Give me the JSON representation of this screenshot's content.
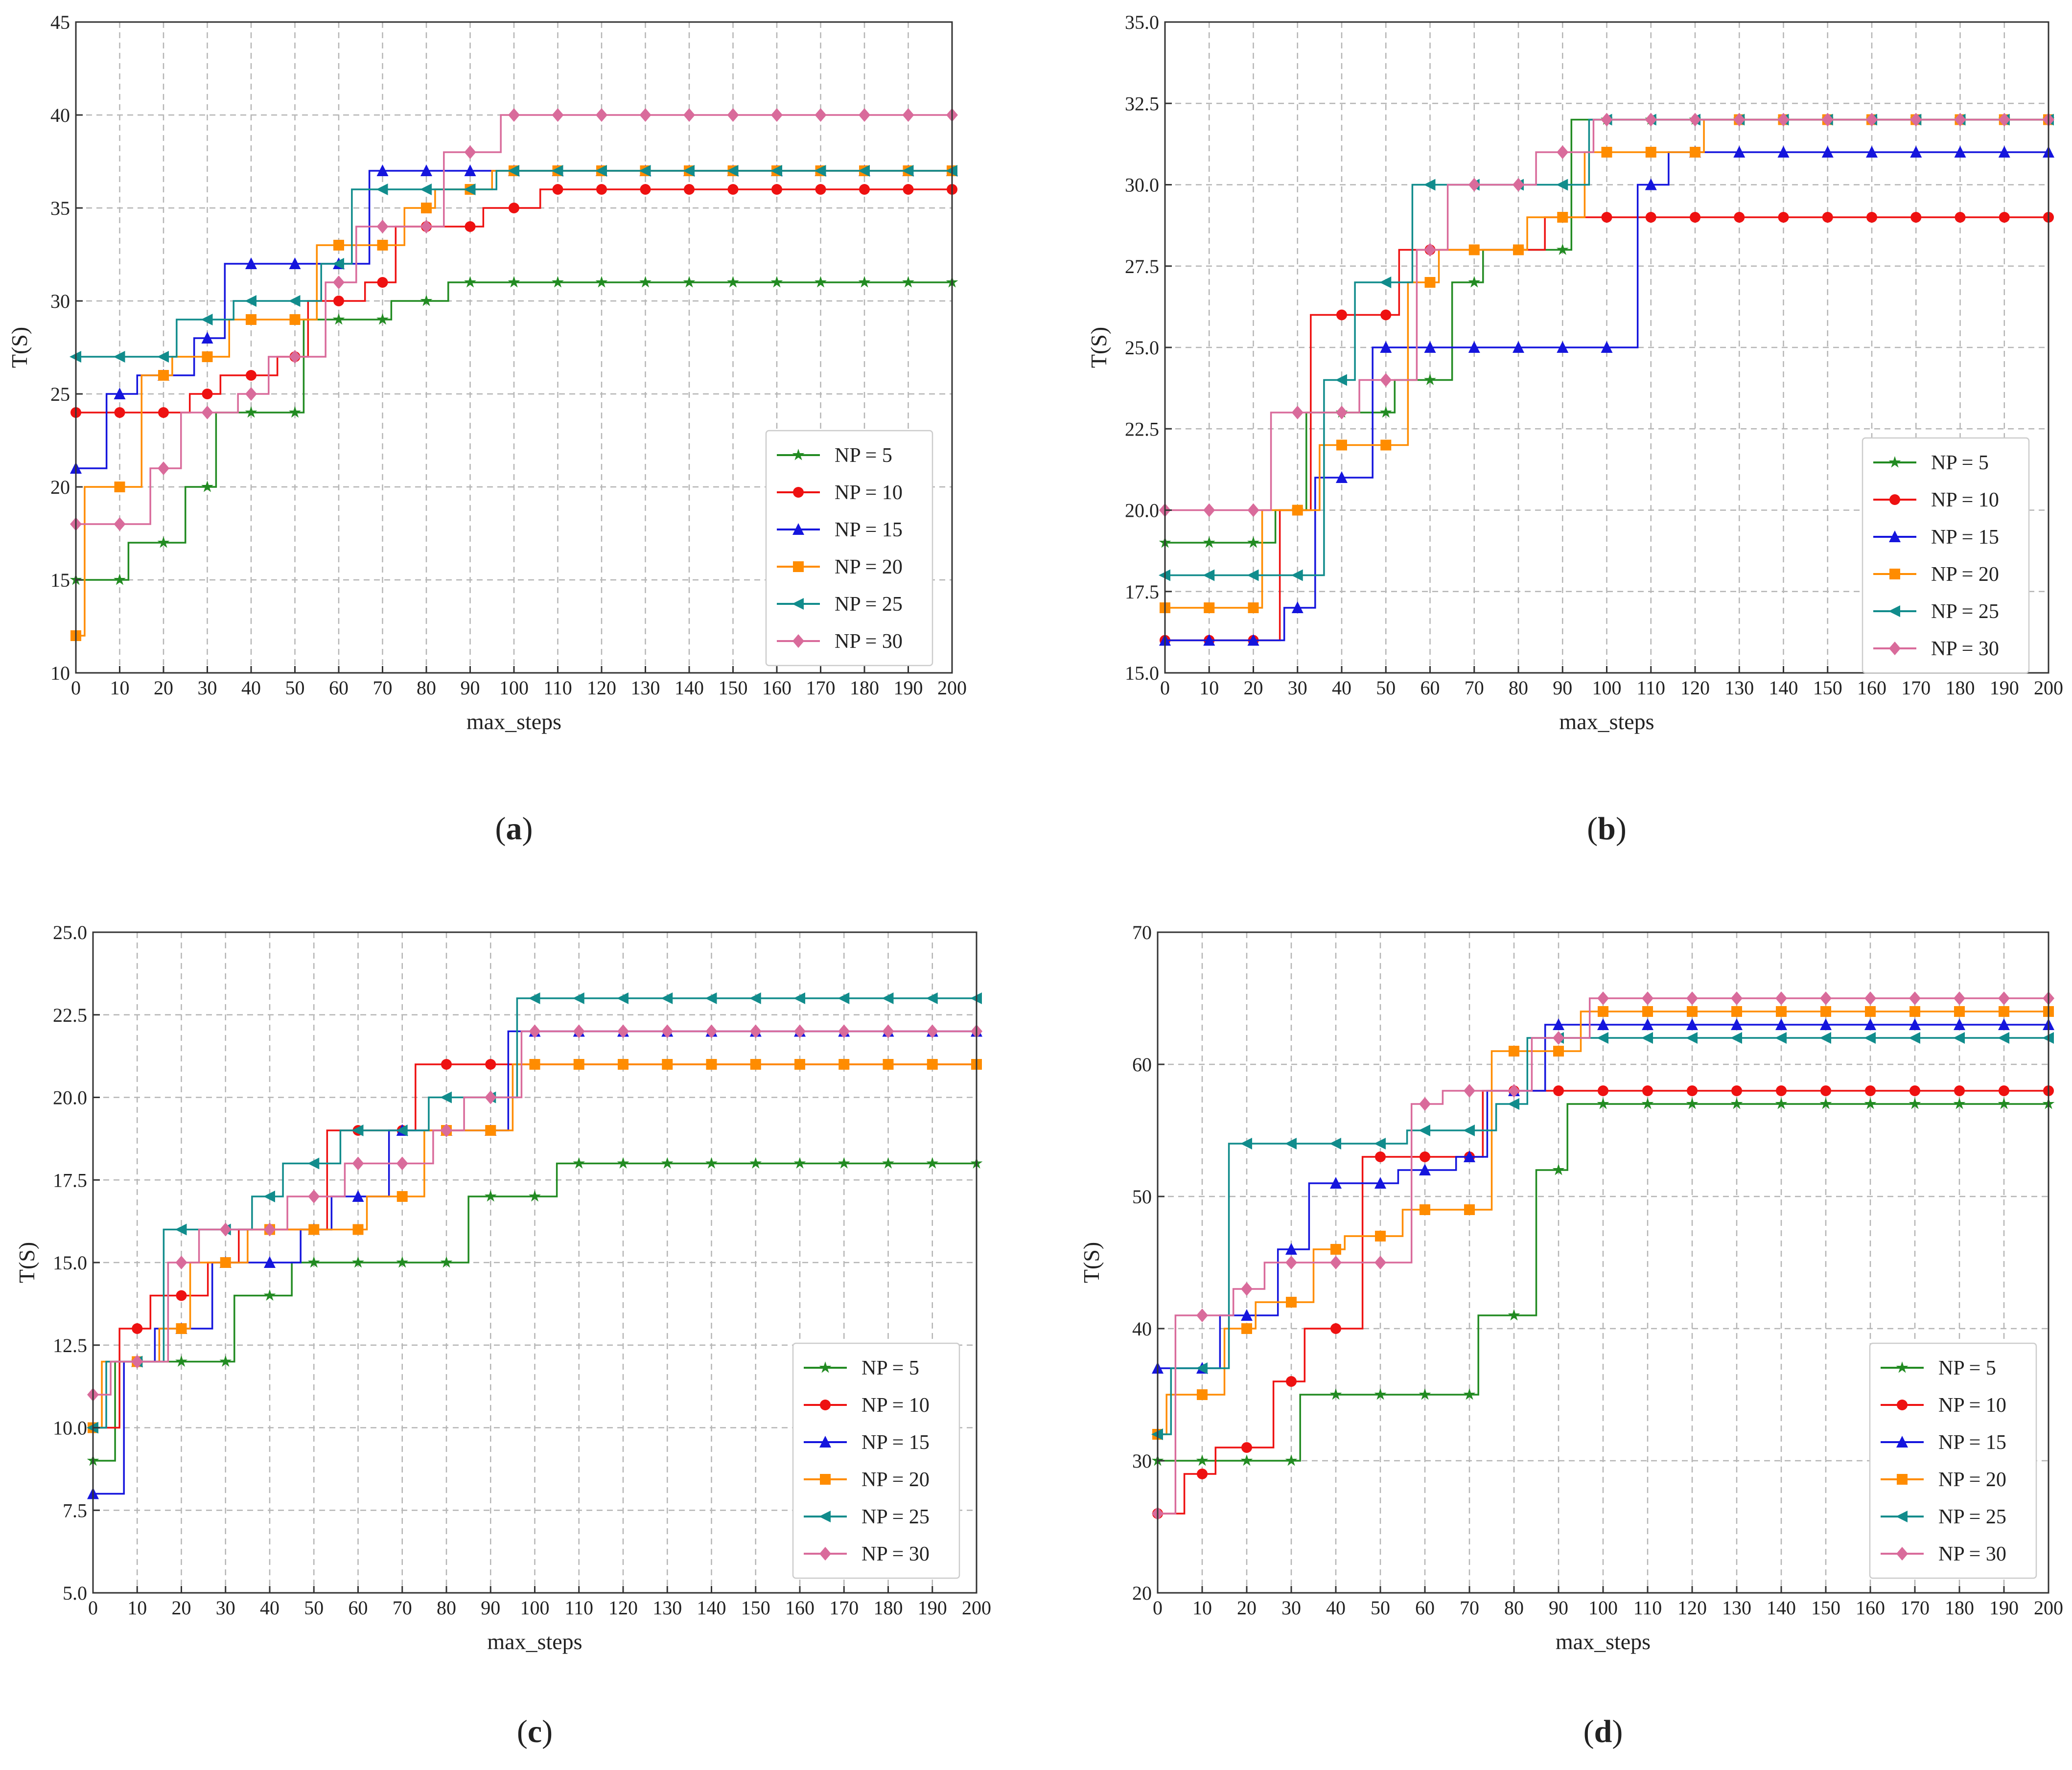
{
  "figure": {
    "series_colors": {
      "NP = 5": "#228b22",
      "NP = 10": "#ee1111",
      "NP = 15": "#1515dd",
      "NP = 20": "#ff8c00",
      "NP = 25": "#118c8c",
      "NP = 30": "#d96b9b"
    },
    "series_markers": {
      "NP = 5": "star",
      "NP = 10": "circle",
      "NP = 15": "triangle",
      "NP = 20": "square",
      "NP = 25": "tri-left",
      "NP = 30": "diamond"
    }
  },
  "chart_data": [
    {
      "type": "line",
      "panel": "a",
      "caption": {
        "open": "(",
        "letter": "a",
        "close": ")"
      },
      "xlabel": "max_steps",
      "ylabel": "T(S)",
      "xlim": [
        0,
        200
      ],
      "ylim": [
        10,
        45
      ],
      "xticks": [
        "0",
        "10",
        "20",
        "30",
        "40",
        "50",
        "60",
        "70",
        "80",
        "90",
        "100",
        "110",
        "120",
        "130",
        "140",
        "150",
        "160",
        "170",
        "180",
        "190",
        "200"
      ],
      "yticks": [
        "10",
        "15",
        "20",
        "25",
        "30",
        "35",
        "40",
        "45"
      ],
      "grid": true,
      "legend_position": "lower-right",
      "x": [
        0,
        10,
        20,
        30,
        40,
        50,
        60,
        70,
        80,
        90,
        100,
        110,
        120,
        130,
        140,
        150,
        160,
        170,
        180,
        190,
        200
      ],
      "series": [
        {
          "name": "NP = 5",
          "values": [
            15,
            15,
            17,
            20,
            24,
            24,
            29,
            29,
            30,
            31,
            31,
            31,
            31,
            31,
            31,
            31,
            31,
            31,
            31,
            31,
            31
          ]
        },
        {
          "name": "NP = 10",
          "values": [
            24,
            24,
            24,
            25,
            26,
            27,
            30,
            31,
            34,
            34,
            35,
            36,
            36,
            36,
            36,
            36,
            36,
            36,
            36,
            36,
            36
          ]
        },
        {
          "name": "NP = 15",
          "values": [
            21,
            25,
            26,
            28,
            32,
            32,
            32,
            37,
            37,
            37,
            37,
            37,
            37,
            37,
            37,
            37,
            37,
            37,
            37,
            37,
            37
          ]
        },
        {
          "name": "NP = 20",
          "values": [
            12,
            20,
            26,
            27,
            29,
            29,
            33,
            33,
            35,
            36,
            37,
            37,
            37,
            37,
            37,
            37,
            37,
            37,
            37,
            37,
            37
          ]
        },
        {
          "name": "NP = 25",
          "values": [
            27,
            27,
            27,
            29,
            30,
            30,
            32,
            36,
            36,
            36,
            37,
            37,
            37,
            37,
            37,
            37,
            37,
            37,
            37,
            37,
            37
          ]
        },
        {
          "name": "NP = 30",
          "values": [
            18,
            18,
            21,
            24,
            25,
            27,
            31,
            34,
            34,
            38,
            40,
            40,
            40,
            40,
            40,
            40,
            40,
            40,
            40,
            40,
            40
          ]
        }
      ]
    },
    {
      "type": "line",
      "panel": "b",
      "caption": {
        "open": "(",
        "letter": "b",
        "close": ")"
      },
      "xlabel": "max_steps",
      "ylabel": "T(S)",
      "xlim": [
        0,
        200
      ],
      "ylim": [
        15,
        35
      ],
      "xticks": [
        "0",
        "10",
        "20",
        "30",
        "40",
        "50",
        "60",
        "70",
        "80",
        "90",
        "100",
        "110",
        "120",
        "130",
        "140",
        "150",
        "160",
        "170",
        "180",
        "190",
        "200"
      ],
      "yticks": [
        "15.0",
        "17.5",
        "20.0",
        "22.5",
        "25.0",
        "27.5",
        "30.0",
        "32.5",
        "35.0"
      ],
      "grid": true,
      "legend_position": "lower-right",
      "x": [
        0,
        10,
        20,
        30,
        40,
        50,
        60,
        70,
        80,
        90,
        100,
        110,
        120,
        130,
        140,
        150,
        160,
        170,
        180,
        190,
        200
      ],
      "series": [
        {
          "name": "NP = 5",
          "values": [
            19,
            19,
            19,
            20,
            23,
            23,
            24,
            27,
            28,
            28,
            32,
            32,
            32,
            32,
            32,
            32,
            32,
            32,
            32,
            32,
            32
          ]
        },
        {
          "name": "NP = 10",
          "values": [
            16,
            16,
            16,
            20,
            26,
            26,
            28,
            28,
            28,
            29,
            29,
            29,
            29,
            29,
            29,
            29,
            29,
            29,
            29,
            29,
            29
          ]
        },
        {
          "name": "NP = 15",
          "values": [
            16,
            16,
            16,
            17,
            21,
            25,
            25,
            25,
            25,
            25,
            25,
            30,
            31,
            31,
            31,
            31,
            31,
            31,
            31,
            31,
            31
          ]
        },
        {
          "name": "NP = 20",
          "values": [
            17,
            17,
            17,
            20,
            22,
            22,
            27,
            28,
            28,
            29,
            31,
            31,
            31,
            32,
            32,
            32,
            32,
            32,
            32,
            32,
            32
          ]
        },
        {
          "name": "NP = 25",
          "values": [
            18,
            18,
            18,
            18,
            24,
            27,
            30,
            30,
            30,
            30,
            32,
            32,
            32,
            32,
            32,
            32,
            32,
            32,
            32,
            32,
            32
          ]
        },
        {
          "name": "NP = 30",
          "values": [
            20,
            20,
            20,
            23,
            23,
            24,
            28,
            30,
            30,
            31,
            32,
            32,
            32,
            32,
            32,
            32,
            32,
            32,
            32,
            32,
            32
          ]
        }
      ]
    },
    {
      "type": "line",
      "panel": "c",
      "caption": {
        "open": "(",
        "letter": "c",
        "close": ")"
      },
      "xlabel": "max_steps",
      "ylabel": "T(S)",
      "xlim": [
        0,
        200
      ],
      "ylim": [
        5,
        25
      ],
      "xticks": [
        "0",
        "10",
        "20",
        "30",
        "40",
        "50",
        "60",
        "70",
        "80",
        "90",
        "100",
        "110",
        "120",
        "130",
        "140",
        "150",
        "160",
        "170",
        "180",
        "190",
        "200"
      ],
      "yticks": [
        "5.0",
        "7.5",
        "10.0",
        "12.5",
        "15.0",
        "17.5",
        "20.0",
        "22.5",
        "25.0"
      ],
      "grid": true,
      "legend_position": "lower-right",
      "x": [
        0,
        10,
        20,
        30,
        40,
        50,
        60,
        70,
        80,
        90,
        100,
        110,
        120,
        130,
        140,
        150,
        160,
        170,
        180,
        190,
        200
      ],
      "series": [
        {
          "name": "NP = 5",
          "values": [
            9,
            12,
            12,
            12,
            14,
            15,
            15,
            15,
            15,
            17,
            17,
            18,
            18,
            18,
            18,
            18,
            18,
            18,
            18,
            18,
            18
          ]
        },
        {
          "name": "NP = 10",
          "values": [
            10,
            13,
            14,
            15,
            16,
            16,
            19,
            19,
            21,
            21,
            21,
            21,
            21,
            21,
            21,
            21,
            21,
            21,
            21,
            21,
            21
          ]
        },
        {
          "name": "NP = 15",
          "values": [
            8,
            12,
            13,
            15,
            15,
            16,
            17,
            19,
            19,
            19,
            22,
            22,
            22,
            22,
            22,
            22,
            22,
            22,
            22,
            22,
            22
          ]
        },
        {
          "name": "NP = 20",
          "values": [
            10,
            12,
            13,
            15,
            16,
            16,
            16,
            17,
            19,
            19,
            21,
            21,
            21,
            21,
            21,
            21,
            21,
            21,
            21,
            21,
            21
          ]
        },
        {
          "name": "NP = 25",
          "values": [
            10,
            12,
            16,
            16,
            17,
            18,
            19,
            19,
            20,
            20,
            23,
            23,
            23,
            23,
            23,
            23,
            23,
            23,
            23,
            23,
            23
          ]
        },
        {
          "name": "NP = 30",
          "values": [
            11,
            12,
            15,
            16,
            16,
            17,
            18,
            18,
            19,
            20,
            22,
            22,
            22,
            22,
            22,
            22,
            22,
            22,
            22,
            22,
            22
          ]
        }
      ]
    },
    {
      "type": "line",
      "panel": "d",
      "caption": {
        "open": "(",
        "letter": "d",
        "close": ")"
      },
      "xlabel": "max_steps",
      "ylabel": "T(S)",
      "xlim": [
        0,
        200
      ],
      "ylim": [
        20,
        70
      ],
      "xticks": [
        "0",
        "10",
        "20",
        "30",
        "40",
        "50",
        "60",
        "70",
        "80",
        "90",
        "100",
        "110",
        "120",
        "130",
        "140",
        "150",
        "160",
        "170",
        "180",
        "190",
        "200"
      ],
      "yticks": [
        "20",
        "30",
        "40",
        "50",
        "60",
        "70"
      ],
      "grid": true,
      "legend_position": "lower-right",
      "x": [
        0,
        10,
        20,
        30,
        40,
        50,
        60,
        70,
        80,
        90,
        100,
        110,
        120,
        130,
        140,
        150,
        160,
        170,
        180,
        190,
        200
      ],
      "series": [
        {
          "name": "NP = 5",
          "values": [
            30,
            30,
            30,
            30,
            35,
            35,
            35,
            35,
            41,
            52,
            57,
            57,
            57,
            57,
            57,
            57,
            57,
            57,
            57,
            57,
            57
          ]
        },
        {
          "name": "NP = 10",
          "values": [
            26,
            29,
            31,
            36,
            40,
            53,
            53,
            53,
            58,
            58,
            58,
            58,
            58,
            58,
            58,
            58,
            58,
            58,
            58,
            58,
            58
          ]
        },
        {
          "name": "NP = 15",
          "values": [
            37,
            37,
            41,
            46,
            51,
            51,
            52,
            53,
            58,
            63,
            63,
            63,
            63,
            63,
            63,
            63,
            63,
            63,
            63,
            63,
            63
          ]
        },
        {
          "name": "NP = 20",
          "values": [
            32,
            35,
            40,
            42,
            46,
            47,
            49,
            49,
            61,
            61,
            64,
            64,
            64,
            64,
            64,
            64,
            64,
            64,
            64,
            64,
            64
          ]
        },
        {
          "name": "NP = 25",
          "values": [
            32,
            37,
            54,
            54,
            54,
            54,
            55,
            55,
            57,
            62,
            62,
            62,
            62,
            62,
            62,
            62,
            62,
            62,
            62,
            62,
            62
          ]
        },
        {
          "name": "NP = 30",
          "values": [
            26,
            41,
            43,
            45,
            45,
            45,
            57,
            58,
            58,
            62,
            65,
            65,
            65,
            65,
            65,
            65,
            65,
            65,
            65,
            65,
            65
          ]
        }
      ]
    }
  ]
}
